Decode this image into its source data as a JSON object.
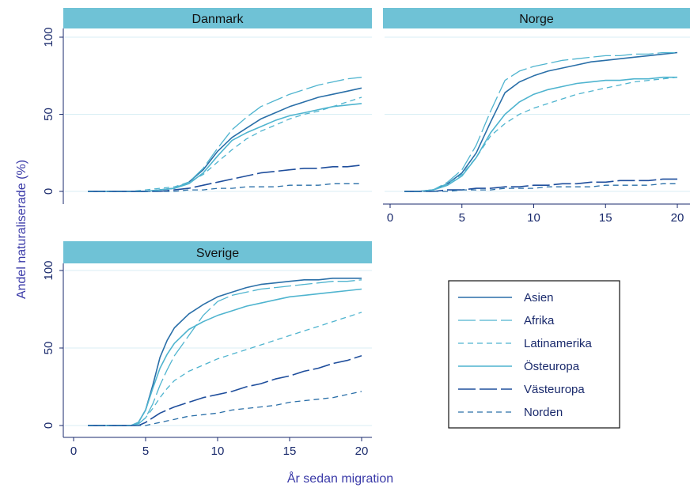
{
  "chart_data": {
    "type": "line",
    "xlabel": "År sedan migration",
    "ylabel": "Andel naturaliserade (%)",
    "xlim": [
      0,
      20
    ],
    "ylim": [
      0,
      100
    ],
    "xticks": [
      0,
      5,
      10,
      15,
      20
    ],
    "yticks": [
      0,
      50,
      100
    ],
    "grid": true,
    "legend_position": "bottom-right",
    "series_styles": [
      {
        "name": "Asien",
        "color": "#2a6fa8",
        "dash": "",
        "width": 1.6
      },
      {
        "name": "Afrika",
        "color": "#4fb4cf",
        "dash": "22 5",
        "width": 1.3
      },
      {
        "name": "Latinamerika",
        "color": "#4fb4cf",
        "dash": "7 5",
        "width": 1.3
      },
      {
        "name": "Östeuropa",
        "color": "#4fb4cf",
        "dash": "",
        "width": 1.6
      },
      {
        "name": "Västeuropa",
        "color": "#1f4e9c",
        "dash": "22 5",
        "width": 1.6
      },
      {
        "name": "Norden",
        "color": "#2a6fa8",
        "dash": "7 5",
        "width": 1.3
      }
    ],
    "panels": [
      {
        "title": "Danmark",
        "series": [
          {
            "name": "Asien",
            "x": [
              1,
              2,
              3,
              4,
              5,
              6,
              7,
              8,
              9,
              10,
              11,
              12,
              13,
              14,
              15,
              16,
              17,
              18,
              19,
              20
            ],
            "values": [
              0,
              0,
              0,
              0,
              0,
              1,
              2,
              6,
              14,
              26,
              35,
              41,
              47,
              51,
              55,
              58,
              61,
              63,
              65,
              67
            ]
          },
          {
            "name": "Afrika",
            "x": [
              1,
              2,
              3,
              4,
              5,
              6,
              7,
              8,
              9,
              10,
              11,
              12,
              13,
              14,
              15,
              16,
              17,
              18,
              19,
              20
            ],
            "values": [
              0,
              0,
              0,
              0,
              0,
              1,
              2,
              6,
              15,
              28,
              40,
              48,
              55,
              59,
              63,
              66,
              69,
              71,
              73,
              74
            ]
          },
          {
            "name": "Latinamerika",
            "x": [
              1,
              2,
              3,
              4,
              5,
              6,
              7,
              8,
              9,
              10,
              11,
              12,
              13,
              14,
              15,
              16,
              17,
              18,
              19,
              20
            ],
            "values": [
              0,
              0,
              0,
              0,
              1,
              2,
              3,
              6,
              11,
              19,
              27,
              34,
              39,
              43,
              47,
              50,
              52,
              55,
              58,
              61
            ]
          },
          {
            "name": "Östeuropa",
            "x": [
              1,
              2,
              3,
              4,
              5,
              6,
              7,
              8,
              9,
              10,
              11,
              12,
              13,
              14,
              15,
              16,
              17,
              18,
              19,
              20
            ],
            "values": [
              0,
              0,
              0,
              0,
              0,
              1,
              2,
              5,
              12,
              23,
              33,
              38,
              42,
              46,
              49,
              51,
              53,
              55,
              56,
              57
            ]
          },
          {
            "name": "Västeuropa",
            "x": [
              1,
              2,
              3,
              4,
              5,
              6,
              7,
              8,
              9,
              10,
              11,
              12,
              13,
              14,
              15,
              16,
              17,
              18,
              19,
              20
            ],
            "values": [
              0,
              0,
              0,
              0,
              0,
              0,
              1,
              2,
              4,
              6,
              8,
              10,
              12,
              13,
              14,
              15,
              15,
              16,
              16,
              17
            ]
          },
          {
            "name": "Norden",
            "x": [
              1,
              2,
              3,
              4,
              5,
              6,
              7,
              8,
              9,
              10,
              11,
              12,
              13,
              14,
              15,
              16,
              17,
              18,
              19,
              20
            ],
            "values": [
              0,
              0,
              0,
              0,
              0,
              0,
              0,
              1,
              1,
              2,
              2,
              3,
              3,
              3,
              4,
              4,
              4,
              5,
              5,
              5
            ]
          }
        ]
      },
      {
        "title": "Norge",
        "series": [
          {
            "name": "Asien",
            "x": [
              1,
              2,
              3,
              4,
              5,
              6,
              7,
              8,
              9,
              10,
              11,
              12,
              13,
              14,
              15,
              16,
              17,
              18,
              19,
              20
            ],
            "values": [
              0,
              0,
              1,
              5,
              12,
              25,
              45,
              64,
              71,
              75,
              78,
              80,
              82,
              84,
              85,
              86,
              87,
              88,
              89,
              90
            ]
          },
          {
            "name": "Afrika",
            "x": [
              1,
              2,
              3,
              4,
              5,
              6,
              7,
              8,
              9,
              10,
              11,
              12,
              13,
              14,
              15,
              16,
              17,
              18,
              19,
              20
            ],
            "values": [
              0,
              0,
              1,
              6,
              14,
              30,
              52,
              72,
              78,
              81,
              83,
              85,
              86,
              87,
              88,
              88,
              89,
              89,
              90,
              90
            ]
          },
          {
            "name": "Latinamerika",
            "x": [
              1,
              2,
              3,
              4,
              5,
              6,
              7,
              8,
              9,
              10,
              11,
              12,
              13,
              14,
              15,
              16,
              17,
              18,
              19,
              20
            ],
            "values": [
              0,
              0,
              1,
              5,
              11,
              22,
              36,
              44,
              50,
              54,
              57,
              60,
              63,
              65,
              67,
              69,
              71,
              72,
              73,
              74
            ]
          },
          {
            "name": "Östeuropa",
            "x": [
              1,
              2,
              3,
              4,
              5,
              6,
              7,
              8,
              9,
              10,
              11,
              12,
              13,
              14,
              15,
              16,
              17,
              18,
              19,
              20
            ],
            "values": [
              0,
              0,
              1,
              4,
              10,
              22,
              38,
              50,
              58,
              63,
              66,
              68,
              70,
              71,
              72,
              72,
              73,
              73,
              74,
              74
            ]
          },
          {
            "name": "Västeuropa",
            "x": [
              1,
              2,
              3,
              4,
              5,
              6,
              7,
              8,
              9,
              10,
              11,
              12,
              13,
              14,
              15,
              16,
              17,
              18,
              19,
              20
            ],
            "values": [
              0,
              0,
              0,
              1,
              1,
              2,
              2,
              3,
              3,
              4,
              4,
              5,
              5,
              6,
              6,
              7,
              7,
              7,
              8,
              8
            ]
          },
          {
            "name": "Norden",
            "x": [
              1,
              2,
              3,
              4,
              5,
              6,
              7,
              8,
              9,
              10,
              11,
              12,
              13,
              14,
              15,
              16,
              17,
              18,
              19,
              20
            ],
            "values": [
              0,
              0,
              0,
              0,
              1,
              1,
              1,
              2,
              2,
              2,
              3,
              3,
              3,
              3,
              4,
              4,
              4,
              4,
              5,
              5
            ]
          }
        ]
      },
      {
        "title": "Sverige",
        "series": [
          {
            "name": "Asien",
            "x": [
              1,
              2,
              3,
              4,
              4.5,
              5,
              5.5,
              6,
              6.5,
              7,
              8,
              9,
              10,
              11,
              12,
              13,
              14,
              15,
              16,
              17,
              18,
              19,
              20
            ],
            "values": [
              0,
              0,
              0,
              0,
              2,
              10,
              26,
              44,
              55,
              63,
              72,
              78,
              83,
              86,
              89,
              91,
              92,
              93,
              94,
              94,
              95,
              95,
              95
            ]
          },
          {
            "name": "Afrika",
            "x": [
              1,
              2,
              3,
              4,
              4.5,
              5,
              5.5,
              6,
              6.5,
              7,
              8,
              9,
              10,
              11,
              12,
              13,
              14,
              15,
              16,
              17,
              18,
              19,
              20
            ],
            "values": [
              0,
              0,
              0,
              0,
              1,
              5,
              14,
              26,
              36,
              45,
              58,
              71,
              80,
              84,
              86,
              88,
              89,
              90,
              91,
              92,
              93,
              93,
              94
            ]
          },
          {
            "name": "Latinamerika",
            "x": [
              1,
              2,
              3,
              4,
              4.5,
              5,
              5.5,
              6,
              6.5,
              7,
              8,
              9,
              10,
              11,
              12,
              13,
              14,
              15,
              16,
              17,
              18,
              19,
              20
            ],
            "values": [
              0,
              0,
              0,
              0,
              1,
              5,
              11,
              18,
              24,
              29,
              35,
              39,
              43,
              46,
              49,
              52,
              55,
              58,
              61,
              64,
              67,
              70,
              73
            ]
          },
          {
            "name": "Östeuropa",
            "x": [
              1,
              2,
              3,
              4,
              4.5,
              5,
              5.5,
              6,
              6.5,
              7,
              8,
              9,
              10,
              11,
              12,
              13,
              14,
              15,
              16,
              17,
              18,
              19,
              20
            ],
            "values": [
              0,
              0,
              0,
              0,
              2,
              10,
              24,
              37,
              46,
              53,
              62,
              67,
              71,
              74,
              77,
              79,
              81,
              83,
              84,
              85,
              86,
              87,
              88
            ]
          },
          {
            "name": "Västeuropa",
            "x": [
              1,
              2,
              3,
              4,
              4.5,
              5,
              5.5,
              6,
              6.5,
              7,
              8,
              9,
              10,
              11,
              12,
              13,
              14,
              15,
              16,
              17,
              18,
              19,
              20
            ],
            "values": [
              0,
              0,
              0,
              0,
              0,
              2,
              5,
              8,
              10,
              12,
              15,
              18,
              20,
              22,
              25,
              27,
              30,
              32,
              35,
              37,
              40,
              42,
              45
            ]
          },
          {
            "name": "Norden",
            "x": [
              1,
              2,
              3,
              4,
              4.5,
              5,
              5.5,
              6,
              6.5,
              7,
              8,
              9,
              10,
              11,
              12,
              13,
              14,
              15,
              16,
              17,
              18,
              19,
              20
            ],
            "values": [
              0,
              0,
              0,
              0,
              0,
              0,
              1,
              2,
              3,
              4,
              6,
              7,
              8,
              10,
              11,
              12,
              13,
              15,
              16,
              17,
              18,
              20,
              22
            ]
          }
        ]
      }
    ]
  }
}
